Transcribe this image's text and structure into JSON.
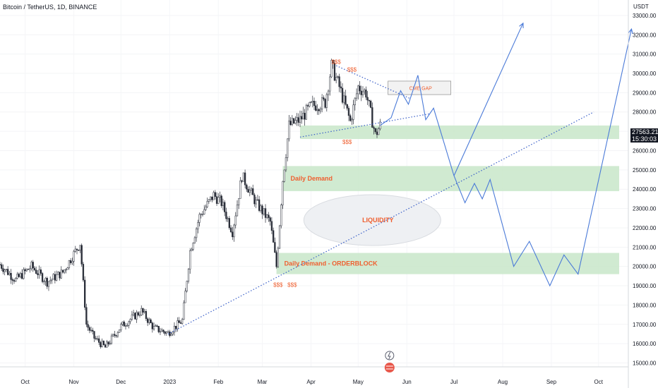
{
  "header": {
    "title": "Bitcoin / TetherUS, 1D, BINANCE",
    "currency": "USDT"
  },
  "price_tag": {
    "price": "27563.21",
    "countdown": "15:30:03"
  },
  "colors": {
    "candle": "#2a2e39",
    "zone": "#c8e6c9",
    "projection": "#4a7ad8",
    "trendline": "#3a5fc8",
    "label_orange": "#ef5f2f",
    "cme_box": "#f2f2f2",
    "liquidity_fill": "#eef0f3"
  },
  "icons": [
    "lightning-icon",
    "us-flag-icon"
  ],
  "chart_data": {
    "type": "candlestick",
    "y_axis": {
      "range": [
        14800,
        33800
      ],
      "tick_labels": [
        "15000.00",
        "16000.00",
        "17000.00",
        "18000.00",
        "19000.00",
        "20000.00",
        "21000.00",
        "22000.00",
        "23000.00",
        "24000.00",
        "25000.00",
        "26000.00",
        "27000.00",
        "28000.00",
        "29000.00",
        "30000.00",
        "31000.00",
        "32000.00",
        "33000.00"
      ],
      "tick_values": [
        15000,
        16000,
        17000,
        18000,
        19000,
        20000,
        21000,
        22000,
        23000,
        24000,
        25000,
        26000,
        27000,
        28000,
        29000,
        30000,
        31000,
        32000,
        33000
      ]
    },
    "x_axis": {
      "range": [
        "2022-09-15",
        "2023-10-20"
      ],
      "tick_labels": [
        "Oct",
        "Nov",
        "Dec",
        "2023",
        "Feb",
        "Mar",
        "Apr",
        "May",
        "Jun",
        "Jul",
        "Aug",
        "Sep",
        "Oct"
      ],
      "tick_dates": [
        "2022-10-01",
        "2022-11-01",
        "2022-12-01",
        "2023-01-01",
        "2023-02-01",
        "2023-03-01",
        "2023-04-01",
        "2023-05-01",
        "2023-06-01",
        "2023-07-01",
        "2023-08-01",
        "2023-09-01",
        "2023-10-01"
      ]
    },
    "price_path": [
      [
        "2022-09-15",
        20100
      ],
      [
        "2022-09-25",
        19300
      ],
      [
        "2022-10-05",
        20000
      ],
      [
        "2022-10-15",
        19200
      ],
      [
        "2022-10-25",
        19700
      ],
      [
        "2022-11-05",
        21200
      ],
      [
        "2022-11-09",
        17000
      ],
      [
        "2022-11-14",
        16300
      ],
      [
        "2022-11-21",
        15800
      ],
      [
        "2022-12-01",
        16900
      ],
      [
        "2022-12-14",
        17700
      ],
      [
        "2022-12-22",
        16800
      ],
      [
        "2022-12-31",
        16550
      ],
      [
        "2023-01-09",
        17200
      ],
      [
        "2023-01-14",
        20800
      ],
      [
        "2023-01-20",
        22600
      ],
      [
        "2023-01-29",
        23700
      ],
      [
        "2023-02-03",
        23300
      ],
      [
        "2023-02-10",
        21800
      ],
      [
        "2023-02-16",
        24700
      ],
      [
        "2023-02-25",
        23300
      ],
      [
        "2023-03-06",
        22300
      ],
      [
        "2023-03-10",
        20000
      ],
      [
        "2023-03-14",
        24500
      ],
      [
        "2023-03-18",
        27300
      ],
      [
        "2023-03-25",
        27600
      ],
      [
        "2023-04-01",
        28300
      ],
      [
        "2023-04-10",
        28500
      ],
      [
        "2023-04-14",
        30400
      ],
      [
        "2023-04-19",
        29300
      ],
      [
        "2023-04-26",
        27500
      ],
      [
        "2023-05-01",
        29300
      ],
      [
        "2023-05-06",
        29000
      ],
      [
        "2023-05-12",
        26800
      ],
      [
        "2023-05-15",
        27300
      ]
    ],
    "zones": [
      {
        "name": "",
        "from": 26600,
        "to": 27300
      },
      {
        "name": "Daily Demand",
        "from": 23900,
        "to": 25200
      },
      {
        "name": "Daily Demand - ORDERBLOCK",
        "from": 19600,
        "to": 20700
      }
    ],
    "annotations": {
      "cme_gap": {
        "label": "CME GAP",
        "from": 28900,
        "to": 29600,
        "start": "2023-05-20",
        "end": "2023-06-29"
      },
      "liquidity": {
        "label": "LIQUIDITY",
        "center_date": "2023-05-10",
        "center_price": 22400
      },
      "liquidity_marks": [
        {
          "label": "$$$",
          "date": "2023-04-17",
          "price": 30500
        },
        {
          "label": "$$$",
          "date": "2023-04-27",
          "price": 30100
        },
        {
          "label": "$$$",
          "date": "2023-04-24",
          "price": 26350
        },
        {
          "label": "$$$",
          "date": "2023-03-11",
          "price": 18950
        },
        {
          "label": "$$$",
          "date": "2023-03-20",
          "price": 18950
        }
      ]
    },
    "trendlines": [
      {
        "style": "dotted",
        "points": [
          [
            "2022-12-31",
            16500
          ],
          [
            "2023-09-28",
            28000
          ]
        ]
      },
      {
        "style": "dotted",
        "points": [
          [
            "2023-03-25",
            26700
          ],
          [
            "2023-06-15",
            27900
          ]
        ]
      },
      {
        "style": "dotted",
        "points": [
          [
            "2023-04-17",
            30400
          ],
          [
            "2023-06-03",
            28700
          ]
        ]
      }
    ],
    "projections": [
      {
        "points": [
          [
            "2023-05-15",
            27300
          ],
          [
            "2023-05-22",
            27700
          ],
          [
            "2023-05-28",
            29100
          ],
          [
            "2023-06-02",
            28400
          ],
          [
            "2023-06-08",
            29900
          ],
          [
            "2023-06-13",
            27600
          ],
          [
            "2023-06-18",
            28200
          ],
          [
            "2023-07-01",
            24700
          ],
          [
            "2023-07-08",
            23300
          ],
          [
            "2023-07-14",
            24300
          ],
          [
            "2023-07-19",
            23500
          ],
          [
            "2023-07-24",
            24500
          ],
          [
            "2023-08-08",
            20000
          ],
          [
            "2023-08-18",
            21300
          ],
          [
            "2023-08-31",
            19000
          ],
          [
            "2023-09-09",
            20600
          ],
          [
            "2023-09-18",
            19600
          ],
          [
            "2023-10-22",
            32300
          ]
        ]
      },
      {
        "points": [
          [
            "2023-07-01",
            24700
          ],
          [
            "2023-08-14",
            32600
          ]
        ]
      }
    ]
  }
}
